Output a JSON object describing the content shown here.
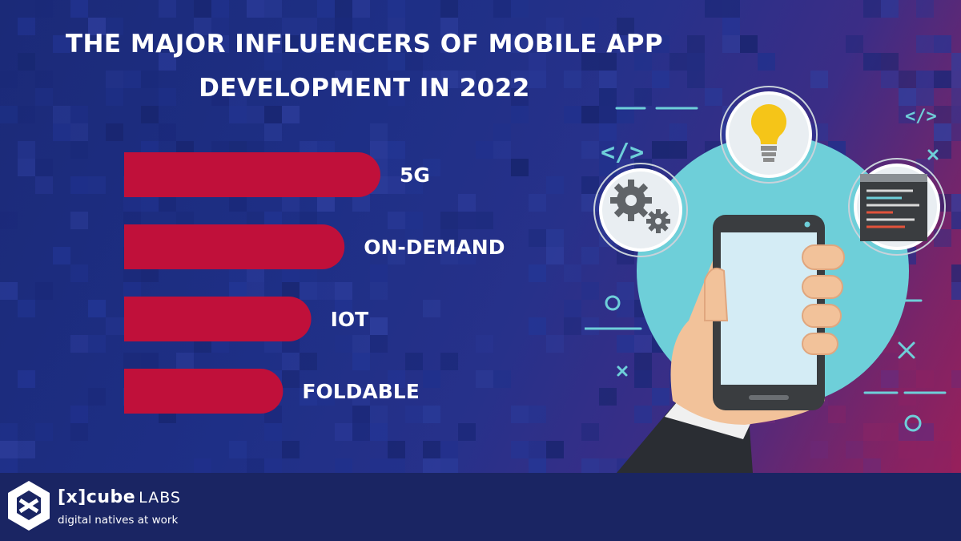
{
  "title": {
    "line1": "THE  MAJOR INFLUENCERS OF  MOBILE APP",
    "line2": "DEVELOPMENT  IN 2022"
  },
  "chart_data": {
    "type": "bar",
    "orientation": "horizontal",
    "categories": [
      "5G",
      "ON-DEMAND",
      "IOT",
      "FOLDABLE"
    ],
    "values": [
      100,
      86,
      73,
      62
    ],
    "bar_color": "#c0103a",
    "grid": false
  },
  "brand": {
    "name": "[x]cube",
    "suffix": "LABS",
    "tagline": "digital natives at work"
  },
  "colors": {
    "background": "#1e2f86",
    "footer": "#1a2563",
    "accent": "#c0103a",
    "circle": "#6ecfd9"
  }
}
